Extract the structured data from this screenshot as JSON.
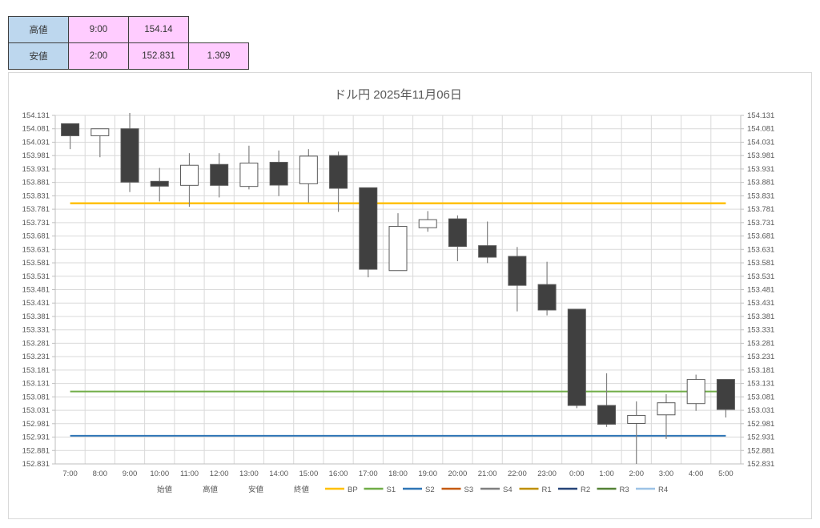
{
  "summary_table": {
    "rows": [
      {
        "label": "高値",
        "time": "9:00",
        "value": "154.14",
        "diff": ""
      },
      {
        "label": "安値",
        "time": "2:00",
        "value": "152.831",
        "diff": "1.309"
      }
    ],
    "header_bg": "#BDD7EE",
    "value_bg": "#FFCCFF"
  },
  "chart_data": {
    "type": "candlestick",
    "title": "ドル円 2025年11月06日",
    "grid": true,
    "legend_position": "bottom",
    "ylim": [
      152.831,
      154.131
    ],
    "ytick_step": 0.05,
    "yticks": [
      "154.131",
      "154.081",
      "154.031",
      "153.981",
      "153.931",
      "153.881",
      "153.831",
      "153.781",
      "153.731",
      "153.681",
      "153.631",
      "153.581",
      "153.531",
      "153.481",
      "153.431",
      "153.381",
      "153.331",
      "153.281",
      "153.231",
      "153.181",
      "153.131",
      "153.081",
      "153.031",
      "152.981",
      "152.931",
      "152.881",
      "152.831"
    ],
    "x": [
      "7:00",
      "8:00",
      "9:00",
      "10:00",
      "11:00",
      "12:00",
      "13:00",
      "14:00",
      "15:00",
      "16:00",
      "17:00",
      "18:00",
      "19:00",
      "20:00",
      "21:00",
      "22:00",
      "23:00",
      "0:00",
      "1:00",
      "2:00",
      "3:00",
      "4:00",
      "5:00"
    ],
    "ohlc_order": [
      "open",
      "high",
      "low",
      "close"
    ],
    "ohlc": [
      [
        154.1,
        154.1,
        154.005,
        154.055
      ],
      [
        154.055,
        154.081,
        153.975,
        154.081
      ],
      [
        154.081,
        154.14,
        153.845,
        153.882
      ],
      [
        153.885,
        153.935,
        153.81,
        153.867
      ],
      [
        153.87,
        153.99,
        153.79,
        153.945
      ],
      [
        153.948,
        153.99,
        153.825,
        153.87
      ],
      [
        153.866,
        154.018,
        153.855,
        153.953
      ],
      [
        153.956,
        154.0,
        153.83,
        153.871
      ],
      [
        153.876,
        154.005,
        153.806,
        153.979
      ],
      [
        153.981,
        153.996,
        153.771,
        153.859
      ],
      [
        153.861,
        153.861,
        153.527,
        153.557
      ],
      [
        153.552,
        153.766,
        153.552,
        153.717
      ],
      [
        153.712,
        153.774,
        153.697,
        153.742
      ],
      [
        153.745,
        153.758,
        153.587,
        153.642
      ],
      [
        153.645,
        153.735,
        153.58,
        153.602
      ],
      [
        153.605,
        153.64,
        153.4,
        153.497
      ],
      [
        153.5,
        153.585,
        153.385,
        153.405
      ],
      [
        153.408,
        153.408,
        153.039,
        153.049
      ],
      [
        153.049,
        153.169,
        152.969,
        152.979
      ],
      [
        152.982,
        153.064,
        152.831,
        153.012
      ],
      [
        153.014,
        153.091,
        152.924,
        153.059
      ],
      [
        153.056,
        153.164,
        153.029,
        153.146
      ],
      [
        153.146,
        153.146,
        153.004,
        153.034
      ]
    ],
    "candle_up_color": "#FFFFFF",
    "candle_down_color": "#404040",
    "series_legend": [
      "始値",
      "高値",
      "安値",
      "終値"
    ],
    "pivot_lines": [
      {
        "label": "BP",
        "color": "#FFC000",
        "value": 153.803
      },
      {
        "label": "S1",
        "color": "#70AD47",
        "value": 153.101
      },
      {
        "label": "S2",
        "color": "#2E75B6",
        "value": 152.936
      },
      {
        "label": "S3",
        "color": "#C55A11"
      },
      {
        "label": "S4",
        "color": "#7F7F7F"
      },
      {
        "label": "R1",
        "color": "#BF8F00"
      },
      {
        "label": "R2",
        "color": "#264478"
      },
      {
        "label": "R3",
        "color": "#548235"
      },
      {
        "label": "R4",
        "color": "#9DC3E6"
      }
    ]
  }
}
